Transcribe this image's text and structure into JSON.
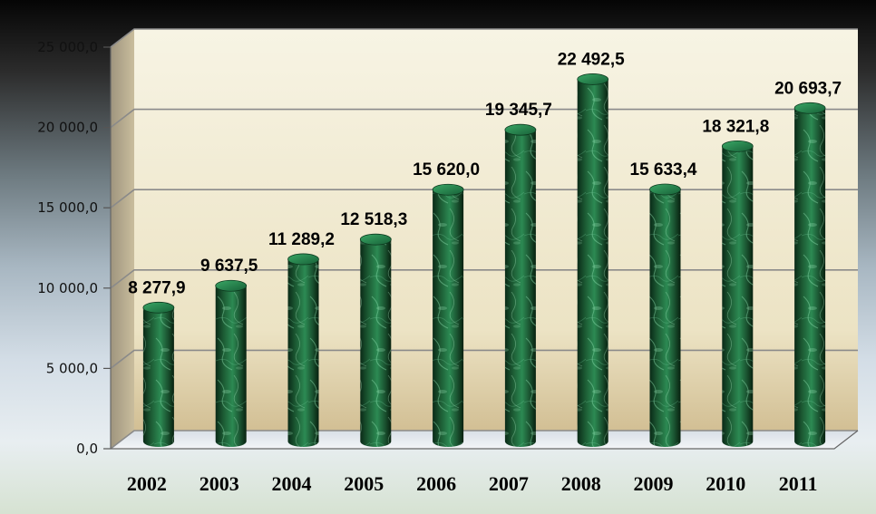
{
  "chart_data": {
    "type": "bar",
    "categories": [
      "2002",
      "2003",
      "2004",
      "2005",
      "2006",
      "2007",
      "2008",
      "2009",
      "2010",
      "2011"
    ],
    "values": [
      8277.9,
      9637.5,
      11289.2,
      12518.3,
      15620.0,
      19345.7,
      22492.5,
      15633.4,
      18321.8,
      20693.7
    ],
    "value_labels": [
      "8 277,9",
      "9 637,5",
      "11 289,2",
      "12 518,3",
      "15 620,0",
      "19 345,7",
      "22 492,5",
      "15 633,4",
      "18 321,8",
      "20 693,7"
    ],
    "title": "",
    "xlabel": "",
    "ylabel": "",
    "ylim": [
      0,
      25000
    ],
    "yticks": [
      0,
      5000,
      10000,
      15000,
      20000,
      25000
    ],
    "ytick_labels": [
      "0,0",
      "5 000,0",
      "10 000,0",
      "15 000,0",
      "20 000,0",
      "25 000,0"
    ],
    "grid": true,
    "legend": "none",
    "bar_shape": "cylinder",
    "bar_color": "#1f6a3d"
  }
}
